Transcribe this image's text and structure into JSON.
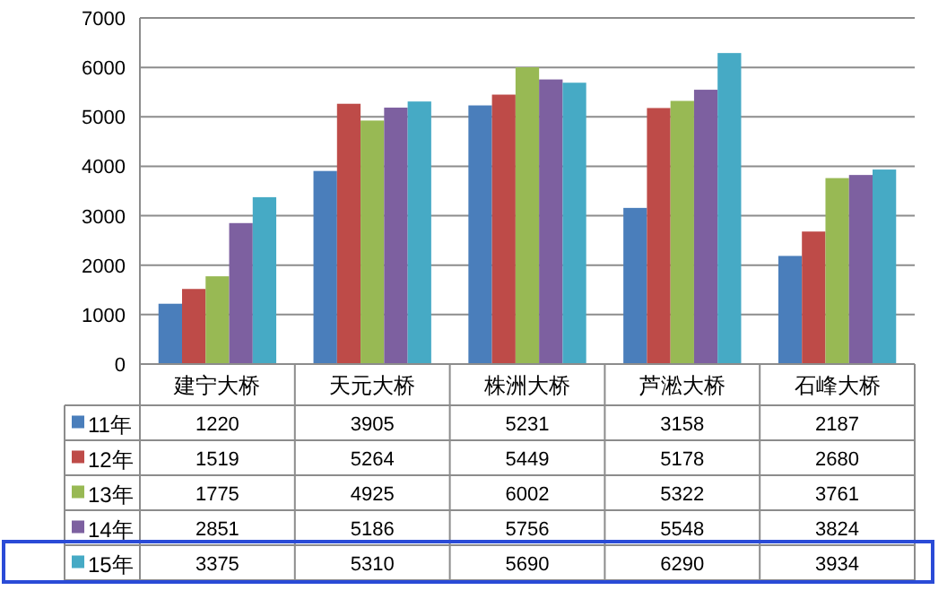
{
  "chart_data": {
    "type": "bar",
    "categories": [
      "建宁大桥",
      "天元大桥",
      "株洲大桥",
      "芦淞大桥",
      "石峰大桥"
    ],
    "series": [
      {
        "name": "11年",
        "color": "#4a7ebb",
        "values": [
          1220,
          3905,
          5231,
          3158,
          2187
        ]
      },
      {
        "name": "12年",
        "color": "#be4b48",
        "values": [
          1519,
          5264,
          5449,
          5178,
          2680
        ]
      },
      {
        "name": "13年",
        "color": "#98b954",
        "values": [
          1775,
          4925,
          6002,
          5322,
          3761
        ]
      },
      {
        "name": "14年",
        "color": "#7d60a0",
        "values": [
          2851,
          5186,
          5756,
          5548,
          3824
        ]
      },
      {
        "name": "15年",
        "color": "#46aac5",
        "values": [
          3375,
          5310,
          5690,
          6290,
          3934
        ]
      }
    ],
    "ylim": [
      0,
      7000
    ],
    "yticks": [
      0,
      1000,
      2000,
      3000,
      4000,
      5000,
      6000,
      7000
    ],
    "grid": "y",
    "data_labels": true,
    "legend": "bottom"
  }
}
